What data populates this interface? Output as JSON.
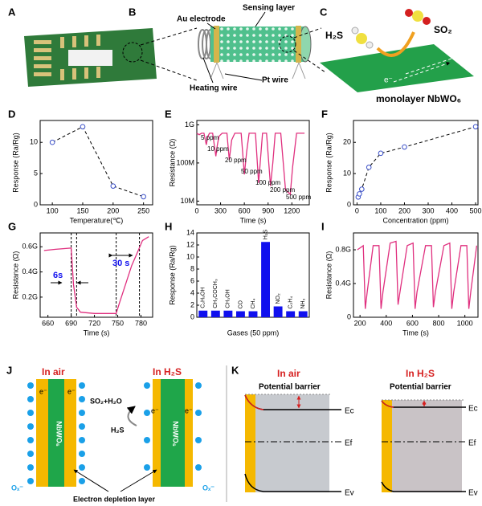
{
  "figure": {
    "labels": {
      "a": "A",
      "b": "B",
      "c": "C",
      "j": "J",
      "k": "K"
    },
    "schematic_b": {
      "sensing_layer": "Sensing layer",
      "au_electrode": "Au electrode",
      "heating_wire": "Heating wire",
      "pt_wire": "Pt wire"
    },
    "schematic_c": {
      "h2s": "H₂S",
      "so2": "SO₂",
      "electron": "e⁻",
      "material": "monolayer NbWO₆"
    },
    "schematic_j": {
      "titles": [
        "In air",
        "In H₂S"
      ],
      "electrons": [
        "e⁻",
        "e⁻",
        "e⁻",
        "e⁻"
      ],
      "material": [
        "NbWO₆",
        "NbWO₆"
      ],
      "products": "SO₂+H₂O",
      "reactant": "H₂S",
      "ions": [
        "Oₓ⁻",
        "Oₓ⁻"
      ],
      "depletion": "Electron depletion layer"
    },
    "schematic_k": {
      "titles": [
        "In air",
        "In H₂S"
      ],
      "barrier": [
        "Potential barrier",
        "Potential barrier"
      ],
      "levels": [
        [
          "Ec",
          "Ef",
          "Ev"
        ],
        [
          "Ec",
          "Ef",
          "Ev"
        ]
      ]
    }
  },
  "chart_data": [
    {
      "type": "line",
      "label": "D",
      "x_label": "Temperature(℃)",
      "y_label": "Response (Ra/Rg)",
      "x": [
        100,
        150,
        200,
        250
      ],
      "values": [
        10,
        12.5,
        3,
        1.3
      ],
      "color": "#000000",
      "line_style": "dashed",
      "markers": true,
      "marker_color": "#3a4fc8",
      "xlim": [
        80,
        265
      ],
      "xticks": [
        100,
        150,
        200,
        250
      ],
      "ylim": [
        0,
        13.5
      ],
      "yticks": [
        0,
        5,
        10
      ]
    },
    {
      "type": "line",
      "label": "E",
      "x_label": "Time (s)",
      "y_label": "Resistance (Ω)",
      "y_scale": "log",
      "x": [
        0,
        30,
        60,
        90,
        120,
        140,
        160,
        200,
        240,
        260,
        280,
        320,
        380,
        410,
        440,
        480,
        560,
        600,
        630,
        660,
        740,
        780,
        800,
        830,
        880,
        930,
        960,
        990,
        1060,
        1120,
        1180,
        1210,
        1260,
        1300,
        1360
      ],
      "values": [
        600000000,
        550000000,
        600000000,
        600000000,
        300000000,
        500000000,
        600000000,
        600000000,
        150000000,
        300000000,
        500000000,
        600000000,
        600000000,
        120000000,
        400000000,
        600000000,
        600000000,
        50000000,
        200000000,
        600000000,
        600000000,
        30000000,
        100000000,
        600000000,
        600000000,
        25000000,
        100000000,
        600000000,
        600000000,
        20000000,
        15000000,
        80000000,
        600000000,
        600000000,
        600000000
      ],
      "color": "#e0307f",
      "markers": false,
      "annotations": [
        "5 ppm",
        "10 ppm",
        "20 ppm",
        "50 ppm",
        "100 ppm",
        "200 ppm",
        "500 ppm"
      ],
      "xlim": [
        0,
        1420
      ],
      "xticks": [
        0,
        300,
        600,
        900,
        1200
      ],
      "ylim": [
        8000000,
        1300000000
      ],
      "yticks": [
        {
          "value": 10000000,
          "label": "10M"
        },
        {
          "value": 100000000,
          "label": "100M"
        },
        {
          "value": 1000000000,
          "label": "1G"
        }
      ]
    },
    {
      "type": "line",
      "label": "F",
      "x_label": "Concentration (ppm)",
      "y_label": "Response (Ra/Rg)",
      "x": [
        5,
        10,
        20,
        50,
        100,
        200,
        500
      ],
      "values": [
        2.5,
        3.5,
        5,
        12,
        16.5,
        18.5,
        25
      ],
      "color": "#000000",
      "line_style": "dashed",
      "markers": true,
      "marker_color": "#3a4fc8",
      "xlim": [
        -15,
        510
      ],
      "xticks": [
        0,
        100,
        200,
        300,
        400,
        500
      ],
      "ylim": [
        0,
        27
      ],
      "yticks": [
        0,
        10,
        20
      ]
    },
    {
      "type": "line",
      "label": "G",
      "x_label": "Time (s)",
      "y_label": "Resistance (Ω)",
      "x": [
        655,
        670,
        690,
        693,
        697,
        702,
        720,
        748,
        752,
        760,
        768,
        775,
        782,
        790
      ],
      "values": [
        570000000,
        580000000,
        590000000,
        300000000,
        120000000,
        80000000,
        70000000,
        70000000,
        150000000,
        300000000,
        450000000,
        550000000,
        650000000,
        680000000
      ],
      "color": "#e0307f",
      "markers": false,
      "vlines": [
        690,
        697,
        748,
        778
      ],
      "annotations": [
        "6s",
        "30 s"
      ],
      "xlim": [
        650,
        795
      ],
      "xticks": [
        660,
        690,
        720,
        750,
        780
      ],
      "ylim": [
        40000000,
        710000000
      ],
      "yticks": [
        {
          "value": 200000000,
          "label": "0.2G"
        },
        {
          "value": 400000000,
          "label": "0.4G"
        },
        {
          "value": 600000000,
          "label": "0.6G"
        }
      ]
    },
    {
      "type": "bar",
      "label": "H",
      "x_label": "Gases (50 ppm)",
      "y_label": "Response (Ra/Rg)",
      "categories": [
        "C₂H₅OH",
        "CH₃COCH₃",
        "CH₃OH",
        "CO",
        "CH₄",
        "H₂S",
        "NO₂",
        "C₂H₄",
        "NH₃"
      ],
      "values": [
        1.1,
        1.1,
        1.1,
        1,
        1,
        12.5,
        1.8,
        1,
        1
      ],
      "color": "#1010ee",
      "ylim": [
        0,
        14
      ],
      "yticks": [
        0,
        2,
        4,
        6,
        8,
        10,
        12,
        14
      ]
    },
    {
      "type": "line",
      "label": "I",
      "x_label": "Time (s)",
      "y_label": "Resistance (Ω)",
      "x": [
        180,
        225,
        240,
        255,
        300,
        345,
        360,
        375,
        430,
        475,
        490,
        505,
        560,
        605,
        620,
        635,
        700,
        745,
        760,
        775,
        840,
        885,
        900,
        915,
        970,
        1015,
        1030,
        1045,
        1090
      ],
      "values": [
        800000000,
        850000000,
        100000000,
        300000000,
        850000000,
        850000000,
        100000000,
        300000000,
        880000000,
        900000000,
        150000000,
        300000000,
        850000000,
        880000000,
        100000000,
        300000000,
        850000000,
        850000000,
        120000000,
        300000000,
        850000000,
        880000000,
        100000000,
        300000000,
        850000000,
        850000000,
        100000000,
        300000000,
        850000000
      ],
      "color": "#e0307f",
      "markers": false,
      "xlim": [
        150,
        1100
      ],
      "xticks": [
        200,
        400,
        600,
        800,
        1000
      ],
      "ylim": [
        0,
        1000000000
      ],
      "yticks": [
        0,
        {
          "value": 400000000,
          "label": "0.4G"
        },
        {
          "value": 800000000,
          "label": "0.8G"
        }
      ]
    }
  ]
}
